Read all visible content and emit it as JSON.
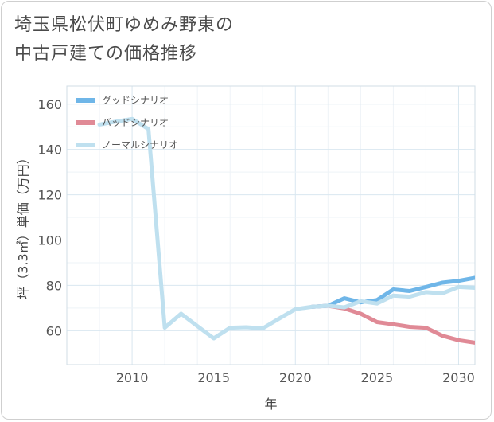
{
  "title": {
    "line1": "埼玉県松伏町ゆめみ野東の",
    "line2": "中古戸建ての価格推移"
  },
  "chart_data": {
    "type": "line",
    "xlabel": "年",
    "ylabel": "坪（3.3㎡）単価（万円）",
    "xlim": [
      2006,
      2031
    ],
    "ylim": [
      45,
      168
    ],
    "xticks": [
      2010,
      2015,
      2020,
      2025,
      2030
    ],
    "yticks": [
      60,
      80,
      100,
      120,
      140,
      160
    ],
    "grid": true,
    "legend_position": "top-left",
    "series": [
      {
        "name": "グッドシナリオ",
        "color": "#6fb6e8",
        "x": [
          2021,
          2022,
          2023,
          2024,
          2025,
          2026,
          2027,
          2028,
          2029,
          2030,
          2031
        ],
        "y": [
          70.5,
          71,
          74.3,
          72.5,
          73.5,
          78.2,
          77.5,
          79.3,
          81.2,
          82,
          83.3
        ]
      },
      {
        "name": "バッドシナリオ",
        "color": "#e08a96",
        "x": [
          2021,
          2022,
          2023,
          2024,
          2025,
          2026,
          2027,
          2028,
          2029,
          2030,
          2031
        ],
        "y": [
          70.5,
          71,
          69.8,
          67.5,
          63.8,
          62.8,
          61.7,
          61.3,
          57.8,
          55.8,
          54.7
        ]
      },
      {
        "name": "ノーマルシナリオ",
        "color": "#bfe0ef",
        "x": [
          2008,
          2009,
          2010,
          2011,
          2012,
          2013,
          2014,
          2015,
          2016,
          2017,
          2018,
          2019,
          2020,
          2021,
          2022,
          2023,
          2024,
          2025,
          2026,
          2027,
          2028,
          2029,
          2030,
          2031
        ],
        "y": [
          151,
          152.3,
          153.5,
          149,
          61.3,
          67.5,
          62,
          56.6,
          61.3,
          61.5,
          61,
          65.3,
          69.5,
          70.5,
          71,
          70.3,
          73,
          72,
          75.5,
          75,
          77,
          76.5,
          79.3,
          78.9
        ]
      }
    ]
  }
}
